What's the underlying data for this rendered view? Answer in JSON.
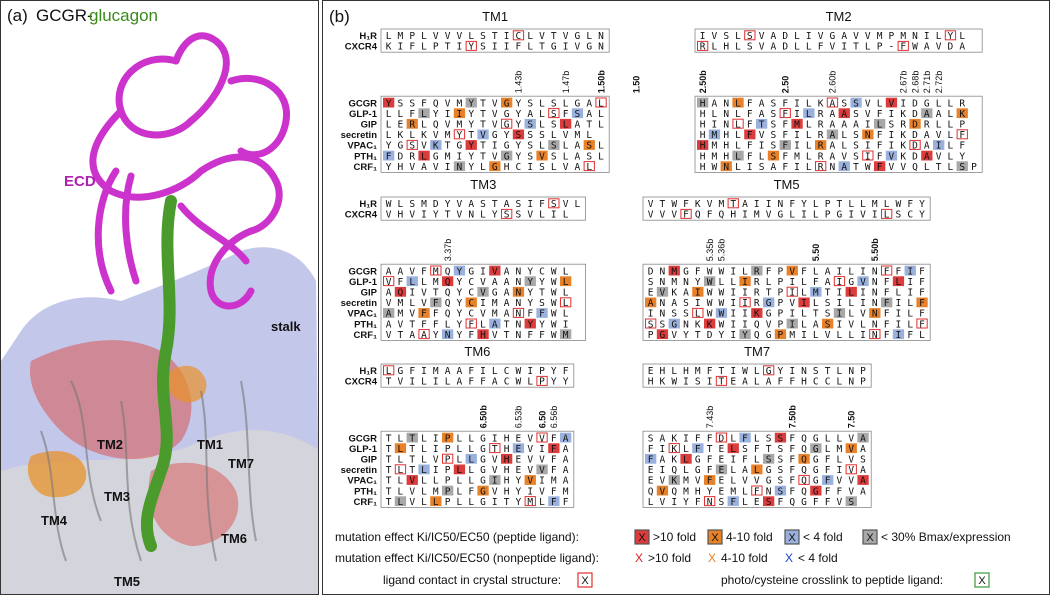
{
  "panel_a": {
    "label": "(a)",
    "title_receptor": "GCGR-",
    "title_ligand": "glucagon",
    "labels": {
      "ecd": "ECD",
      "stalk": "stalk",
      "tm1": "TM1",
      "tm2": "TM2",
      "tm3": "TM3",
      "tm4": "TM4",
      "tm5": "TM5",
      "tm6": "TM6",
      "tm7": "TM7"
    },
    "colors": {
      "ecd": "#cc33cc",
      "ligand": "#4a9a2c",
      "surface": "#b8bde6",
      "strong": "#d9534f",
      "medium": "#e8922a"
    }
  },
  "panel_b": {
    "label": "(b)",
    "colors": {
      "red": "#dc3c3c",
      "orange": "#e8822a",
      "blue": "#9ab0dd",
      "gray": "#a8a8a8",
      "contact": "#e03030",
      "crosslink": "#3a9a3a"
    },
    "blocks": [
      {
        "title": "TM1",
        "top": [
          {
            "name": "H₁R",
            "seq": "LMPLVVVLSTICLVTVGLN"
          },
          {
            "name": "CXCR4",
            "seq": "KIFLPTIYSIIFLTGIVGN"
          }
        ],
        "marks": [
          "",
          "",
          "",
          "",
          "",
          "",
          "",
          "",
          "",
          "",
          "",
          "1.43b",
          "",
          "",
          "",
          "1.47b",
          "",
          "",
          "1.50b",
          "",
          "",
          "1.50"
        ],
        "bot": [
          {
            "name": "GCGR",
            "seq": "YSSFQVMYTVGYSLSLGAL"
          },
          {
            "name": "GLP-1",
            "seq": "LLFLYIIYTVGYALSFSAL"
          },
          {
            "name": "GIP",
            "seq": "LERLQVMYTVGYSLSLATL"
          },
          {
            "name": "secretin",
            "seq": "LKLKVMYTVGYSSSLVML"
          },
          {
            "name": "VPAC₁",
            "seq": "YGSVKTGYTIGYSLSLASL"
          },
          {
            "name": "PTH₁",
            "seq": "FDRLGMIYTVGYSVSLASL"
          },
          {
            "name": "CRF₁",
            "seq": "YHVAVINYLGHCISLVAL"
          }
        ]
      },
      {
        "title": "TM2",
        "top": [
          {
            "name": "",
            "seq": "IVSLSVADLIVGAVVMPMNILYL"
          },
          {
            "name": "",
            "seq": "RLHLSVADLLFVITLP-FWAVDA"
          }
        ],
        "marks": [
          "2.50b",
          "",
          "",
          "",
          "",
          "",
          "",
          "2.50",
          "",
          "",
          "",
          "2.60b",
          "",
          "",
          "",
          "",
          "",
          "2.67b",
          "2.68b",
          "2.71b",
          "2.72b"
        ],
        "bot": [
          {
            "name": "",
            "seq": "HANLFASFILKASSVLVIDGLLR"
          },
          {
            "name": "",
            "seq": "HLNLFASFILRAASVFIKDAALK"
          },
          {
            "name": "",
            "seq": "HINLFTSFMLRAAAILSRDRLLP"
          },
          {
            "name": "",
            "seq": "HMHLFVSFILRALSNFIKDAVLF"
          },
          {
            "name": "",
            "seq": "HMHLFISFILRALSIFIKDAILF"
          },
          {
            "name": "",
            "seq": "HMHLFLSFMLRAVSIFVKDAVLY"
          },
          {
            "name": "",
            "seq": "HWNLISAFILRNATWFVVQLTLSP"
          }
        ]
      },
      {
        "title": "TM3",
        "top": [
          {
            "name": "H₁R",
            "seq": "WLSMDYVASTASIFSVL"
          },
          {
            "name": "CXCR4",
            "seq": "VHVIYTVNLYSSVLIL"
          }
        ],
        "marks": [
          "",
          "",
          "",
          "",
          "",
          "3.37b"
        ],
        "bot": [
          {
            "name": "GCGR",
            "seq": "AAVFMQYGIVANYCWL"
          },
          {
            "name": "GLP-1",
            "seq": "VFLLMQYCVAANYYWL"
          },
          {
            "name": "GIP",
            "seq": "AQIVTQYCVGANYTWL"
          },
          {
            "name": "secretin",
            "seq": "VMLVFQYCIMANYSWL"
          },
          {
            "name": "VPAC₁",
            "seq": "AMVFFQYCVMANFFWL"
          },
          {
            "name": "PTH₁",
            "seq": "AVTFFLYFLATNYYWI"
          },
          {
            "name": "CRF₁",
            "seq": "VTAAYNYFHVTNFFWM"
          }
        ]
      },
      {
        "title": "TM5",
        "top": [
          {
            "name": "",
            "seq": "VTWFKVMTAIINFYLPTLLMLWFY"
          },
          {
            "name": "",
            "seq": "VVVFQFQHIMVGLILPGIVILSCY"
          }
        ],
        "marks": [
          "",
          "",
          "",
          "",
          "",
          "5.35b",
          "5.36b",
          "",
          "",
          "",
          "",
          "",
          "",
          "",
          "5.50",
          "",
          "",
          "",
          "",
          "5.50b"
        ],
        "bot": [
          {
            "name": "",
            "seq": "DNMGFWWILRFPVFLAILINFFIF"
          },
          {
            "name": "",
            "seq": "SNMNYWLLIRLPILFAIGVNFLIF"
          },
          {
            "name": "",
            "seq": "EVKAIWWIIRTPILMTILINFLIF"
          },
          {
            "name": "",
            "seq": "ANASIWWIIRGPVILSILINFILF"
          },
          {
            "name": "",
            "seq": "INSSLWWIIKGPILTSILVNFILF"
          },
          {
            "name": "",
            "seq": "SSGNKKWIIQVPILASIVLNFILF"
          },
          {
            "name": "",
            "seq": "PGVYTDYIYQGPMILVLLINFIFL"
          }
        ]
      },
      {
        "title": "TM6",
        "top": [
          {
            "name": "H₁R",
            "seq": "LGFIMAAFILCWIPYF"
          },
          {
            "name": "CXCR4",
            "seq": "TVILILAFFACWLPYY"
          }
        ],
        "marks": [
          "",
          "",
          "",
          "",
          "",
          "",
          "",
          "",
          "6.50b",
          "",
          "",
          "6.53b",
          "",
          "6.50",
          "6.56b"
        ],
        "bot": [
          {
            "name": "GCGR",
            "seq": "TLTLIPLLGIHEVVFA"
          },
          {
            "name": "GLP-1",
            "seq": "TLTLIPLLGTHEVIFA"
          },
          {
            "name": "GIP",
            "seq": "TLTLVPLLGVHEVVFA"
          },
          {
            "name": "secretin",
            "seq": "TLTLIPLLGVHEVVFA"
          },
          {
            "name": "VPAC₁",
            "seq": "TLVLLPLLGIHYVIMA"
          },
          {
            "name": "PTH₁",
            "seq": "TLVLMPLFGVHYIVFM"
          },
          {
            "name": "CRF₁",
            "seq": "TLVLLPLLGITYMLFF"
          }
        ]
      },
      {
        "title": "TM7",
        "top": [
          {
            "name": "",
            "seq": "EHLHMFTIWLGYINSTLNP"
          },
          {
            "name": "",
            "seq": "HKWISITEALAFFHCCLNP"
          }
        ],
        "marks": [
          "",
          "",
          "",
          "",
          "",
          "7.43b",
          "",
          "",
          "",
          "",
          "",
          "",
          "7.50b",
          "",
          "",
          "",
          "",
          "7.50"
        ],
        "bot": [
          {
            "name": "",
            "seq": "SAKIFFDLFLSSFQGLLVA"
          },
          {
            "name": "",
            "seq": "FIKLFTELSFTSFQGLMVA"
          },
          {
            "name": "",
            "seq": "FAKLGFEIFLSSFQGFLVS"
          },
          {
            "name": "",
            "seq": "EIQLGFELALGSFQGFIVA"
          },
          {
            "name": "",
            "seq": "EVKMVFELVVGSFQGFVVA"
          },
          {
            "name": "",
            "seq": "QVQMHYEMLFNSFQGFFVA"
          },
          {
            "name": "",
            "seq": "LVIYFNSFLESFQGFFVS"
          }
        ]
      }
    ],
    "legend": {
      "peptide_label": "mutation effect Ki/IC50/EC50 (peptide ligand):",
      "nonpeptide_label": "mutation effect Ki/IC50/EC50 (nonpeptide ligand):",
      "contact_label": "ligand contact in crystal structure:",
      "crosslink_label": "photo/cysteine crosslink to peptide ligand:",
      "box_glyph": "X",
      "gt10": ">10 fold",
      "f4_10": "4-10 fold",
      "lt4": "< 4 fold",
      "bmax": "< 30% Bmax/expression"
    }
  }
}
